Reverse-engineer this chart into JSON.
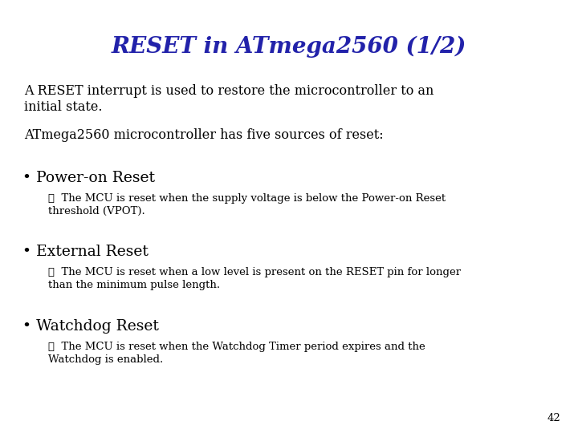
{
  "title": "RESET in ATmega2560 (1/2)",
  "title_color": "#2222aa",
  "title_fontsize": 20,
  "bg_color": "#ffffff",
  "body_color": "#000000",
  "body_fontsize": 11.5,
  "small_fontsize": 9.5,
  "bullet_fontsize": 13.5,
  "page_number": "42",
  "intro_line1": "A RESET interrupt is used to restore the microcontroller to an",
  "intro_line2": "initial state.",
  "sources_line": "ATmega2560 microcontroller has five sources of reset:",
  "bullets": [
    {
      "label": "Power-on Reset",
      "detail_line1": "☐  The MCU is reset when the supply voltage is below the Power-on Reset",
      "detail_line2": "threshold (VPOT)."
    },
    {
      "label": "External Reset",
      "detail_line1": "☐  The MCU is reset when a low level is present on the RESET pin for longer",
      "detail_line2": "than the minimum pulse length."
    },
    {
      "label": "Watchdog Reset",
      "detail_line1": "☐  The MCU is reset when the Watchdog Timer period expires and the",
      "detail_line2": "Watchdog is enabled."
    }
  ]
}
